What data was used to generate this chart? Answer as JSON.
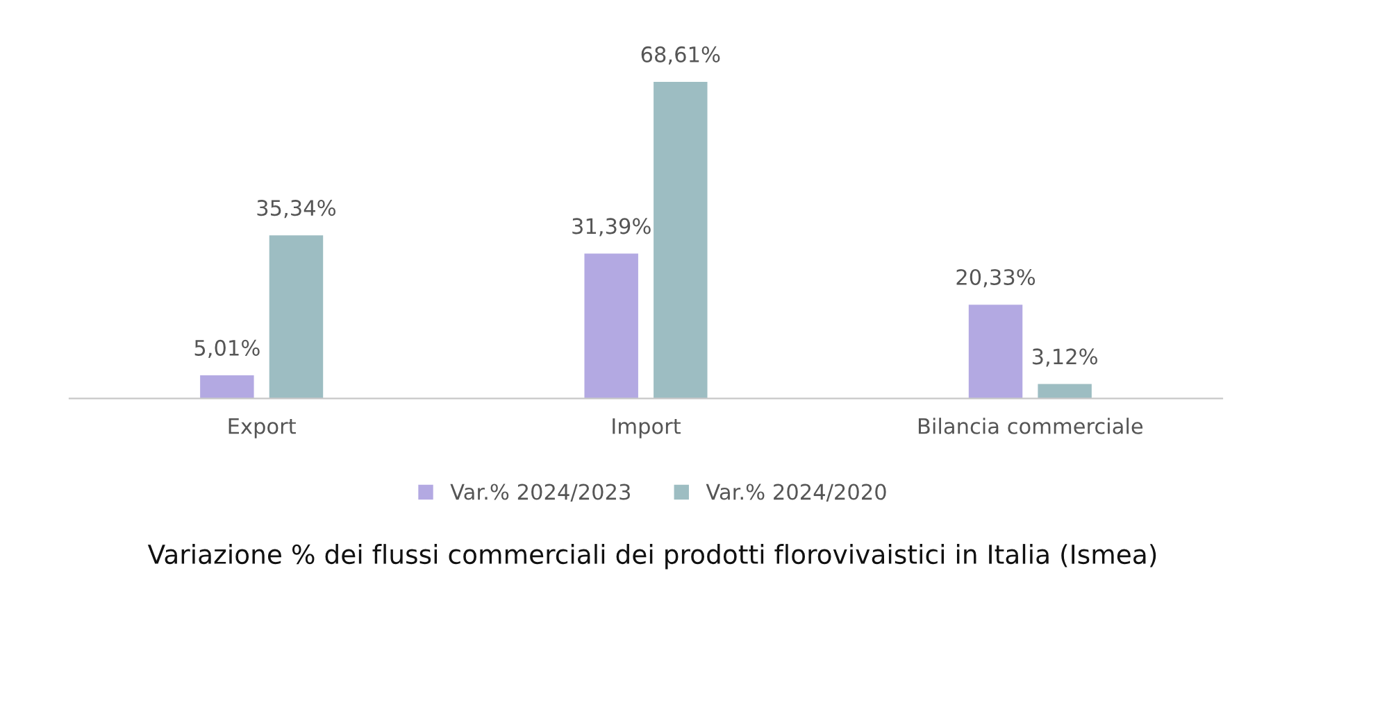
{
  "chart_data": {
    "type": "bar",
    "categories": [
      "Export",
      "Import",
      "Bilancia commerciale"
    ],
    "series": [
      {
        "name": "Var.% 2024/2023",
        "color": "#b3a9e2",
        "values": [
          5.01,
          31.39,
          20.33
        ],
        "value_labels": [
          "5,01%",
          "31,39%",
          "20,33%"
        ]
      },
      {
        "name": "Var.% 2024/2020",
        "color": "#9dbdc2",
        "values": [
          35.34,
          68.61,
          3.12
        ],
        "value_labels": [
          "35,34%",
          "68,61%",
          "3,12%"
        ]
      }
    ],
    "legend": "bottom",
    "grid": false,
    "annotations": [
      "Variazione % dei flussi commerciali dei prodotti florovivaistici in Italia (Ismea)"
    ]
  }
}
